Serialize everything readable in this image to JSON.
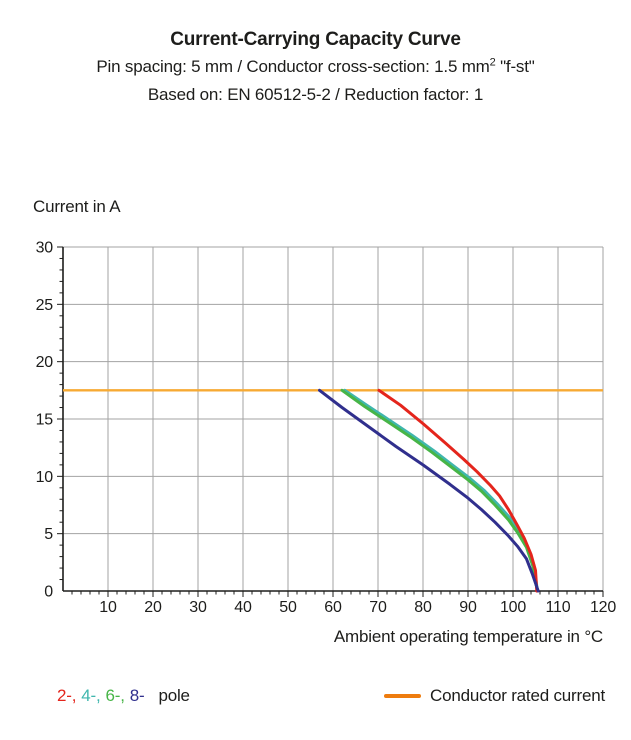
{
  "header": {
    "title": "Current-Carrying Capacity Curve",
    "subtitle_prefix": "Pin spacing: 5 mm / Conductor cross-section: 1.5 mm",
    "subtitle_sup": "2",
    "subtitle_suffix": " \"f-st\"",
    "basis": "Based on: EN 60512-5-2 / Reduction factor: 1"
  },
  "chart_data": {
    "type": "line",
    "title": "Current-Carrying Capacity Curve",
    "xlabel": "Ambient operating temperature in °C",
    "ylabel": "Current in A",
    "xlim": [
      0,
      120
    ],
    "ylim": [
      0,
      30
    ],
    "x_ticks": [
      10,
      20,
      30,
      40,
      50,
      60,
      70,
      80,
      90,
      100,
      110,
      120
    ],
    "y_ticks": [
      0,
      5,
      10,
      15,
      20,
      25,
      30
    ],
    "x_minor_step": 2,
    "y_minor_step": 1,
    "grid": true,
    "colors": {
      "grid": "#a3a3a3",
      "axis": "#1d1d1b",
      "text": "#1d1d1b"
    },
    "rated_current": {
      "label": "Conductor rated current",
      "value_a": 17.5,
      "color": "#F7AA33"
    },
    "series": [
      {
        "name": "4-pole",
        "color": "#3FB6AD",
        "points": [
          [
            62.6,
            17.5
          ],
          [
            67.5,
            16.2
          ],
          [
            72.5,
            14.9
          ],
          [
            77.5,
            13.6
          ],
          [
            82.5,
            12.2
          ],
          [
            86.5,
            11.0
          ],
          [
            90.5,
            9.8
          ],
          [
            93.5,
            8.8
          ],
          [
            96.5,
            7.6
          ],
          [
            99.5,
            6.3
          ],
          [
            101.5,
            5.2
          ],
          [
            103.2,
            3.9
          ],
          [
            104.6,
            2.3
          ],
          [
            105.45,
            0
          ]
        ]
      },
      {
        "name": "6-pole",
        "color": "#47B547",
        "points": [
          [
            62,
            17.5
          ],
          [
            67,
            16.1
          ],
          [
            72,
            14.8
          ],
          [
            77,
            13.5
          ],
          [
            82,
            12.1
          ],
          [
            86,
            10.9
          ],
          [
            90,
            9.7
          ],
          [
            93,
            8.7
          ],
          [
            96,
            7.5
          ],
          [
            99,
            6.2
          ],
          [
            101,
            5.1
          ],
          [
            103,
            3.8
          ],
          [
            104.4,
            2.2
          ],
          [
            105.4,
            0
          ]
        ]
      },
      {
        "name": "2-pole",
        "color": "#E4251C",
        "points": [
          [
            70.2,
            17.5
          ],
          [
            75,
            16.2
          ],
          [
            80,
            14.6
          ],
          [
            85,
            12.9
          ],
          [
            89,
            11.5
          ],
          [
            92,
            10.4
          ],
          [
            95,
            9.2
          ],
          [
            97,
            8.3
          ],
          [
            99,
            7.1
          ],
          [
            101,
            5.7
          ],
          [
            102.5,
            4.6
          ],
          [
            104,
            3.2
          ],
          [
            105,
            1.8
          ],
          [
            105.3,
            0
          ]
        ]
      },
      {
        "name": "8-pole",
        "color": "#302F8D",
        "points": [
          [
            57,
            17.5
          ],
          [
            62,
            16.0
          ],
          [
            68,
            14.3
          ],
          [
            74,
            12.6
          ],
          [
            80,
            11.0
          ],
          [
            86,
            9.3
          ],
          [
            90,
            8.1
          ],
          [
            93,
            7.1
          ],
          [
            96,
            6.0
          ],
          [
            99,
            4.8
          ],
          [
            101,
            3.9
          ],
          [
            103,
            2.8
          ],
          [
            104.3,
            1.5
          ],
          [
            105.6,
            0
          ]
        ]
      }
    ]
  },
  "legend": {
    "poles": [
      {
        "label": "2-,",
        "color": "#E4251C"
      },
      {
        "label": "4-,",
        "color": "#3FB6AD"
      },
      {
        "label": "6-,",
        "color": "#47B547"
      },
      {
        "label": "8-",
        "color": "#302F8D"
      }
    ],
    "pole_word": "pole",
    "rated": {
      "label": "Conductor rated current",
      "swatch_color": "#EE7C0E"
    }
  }
}
